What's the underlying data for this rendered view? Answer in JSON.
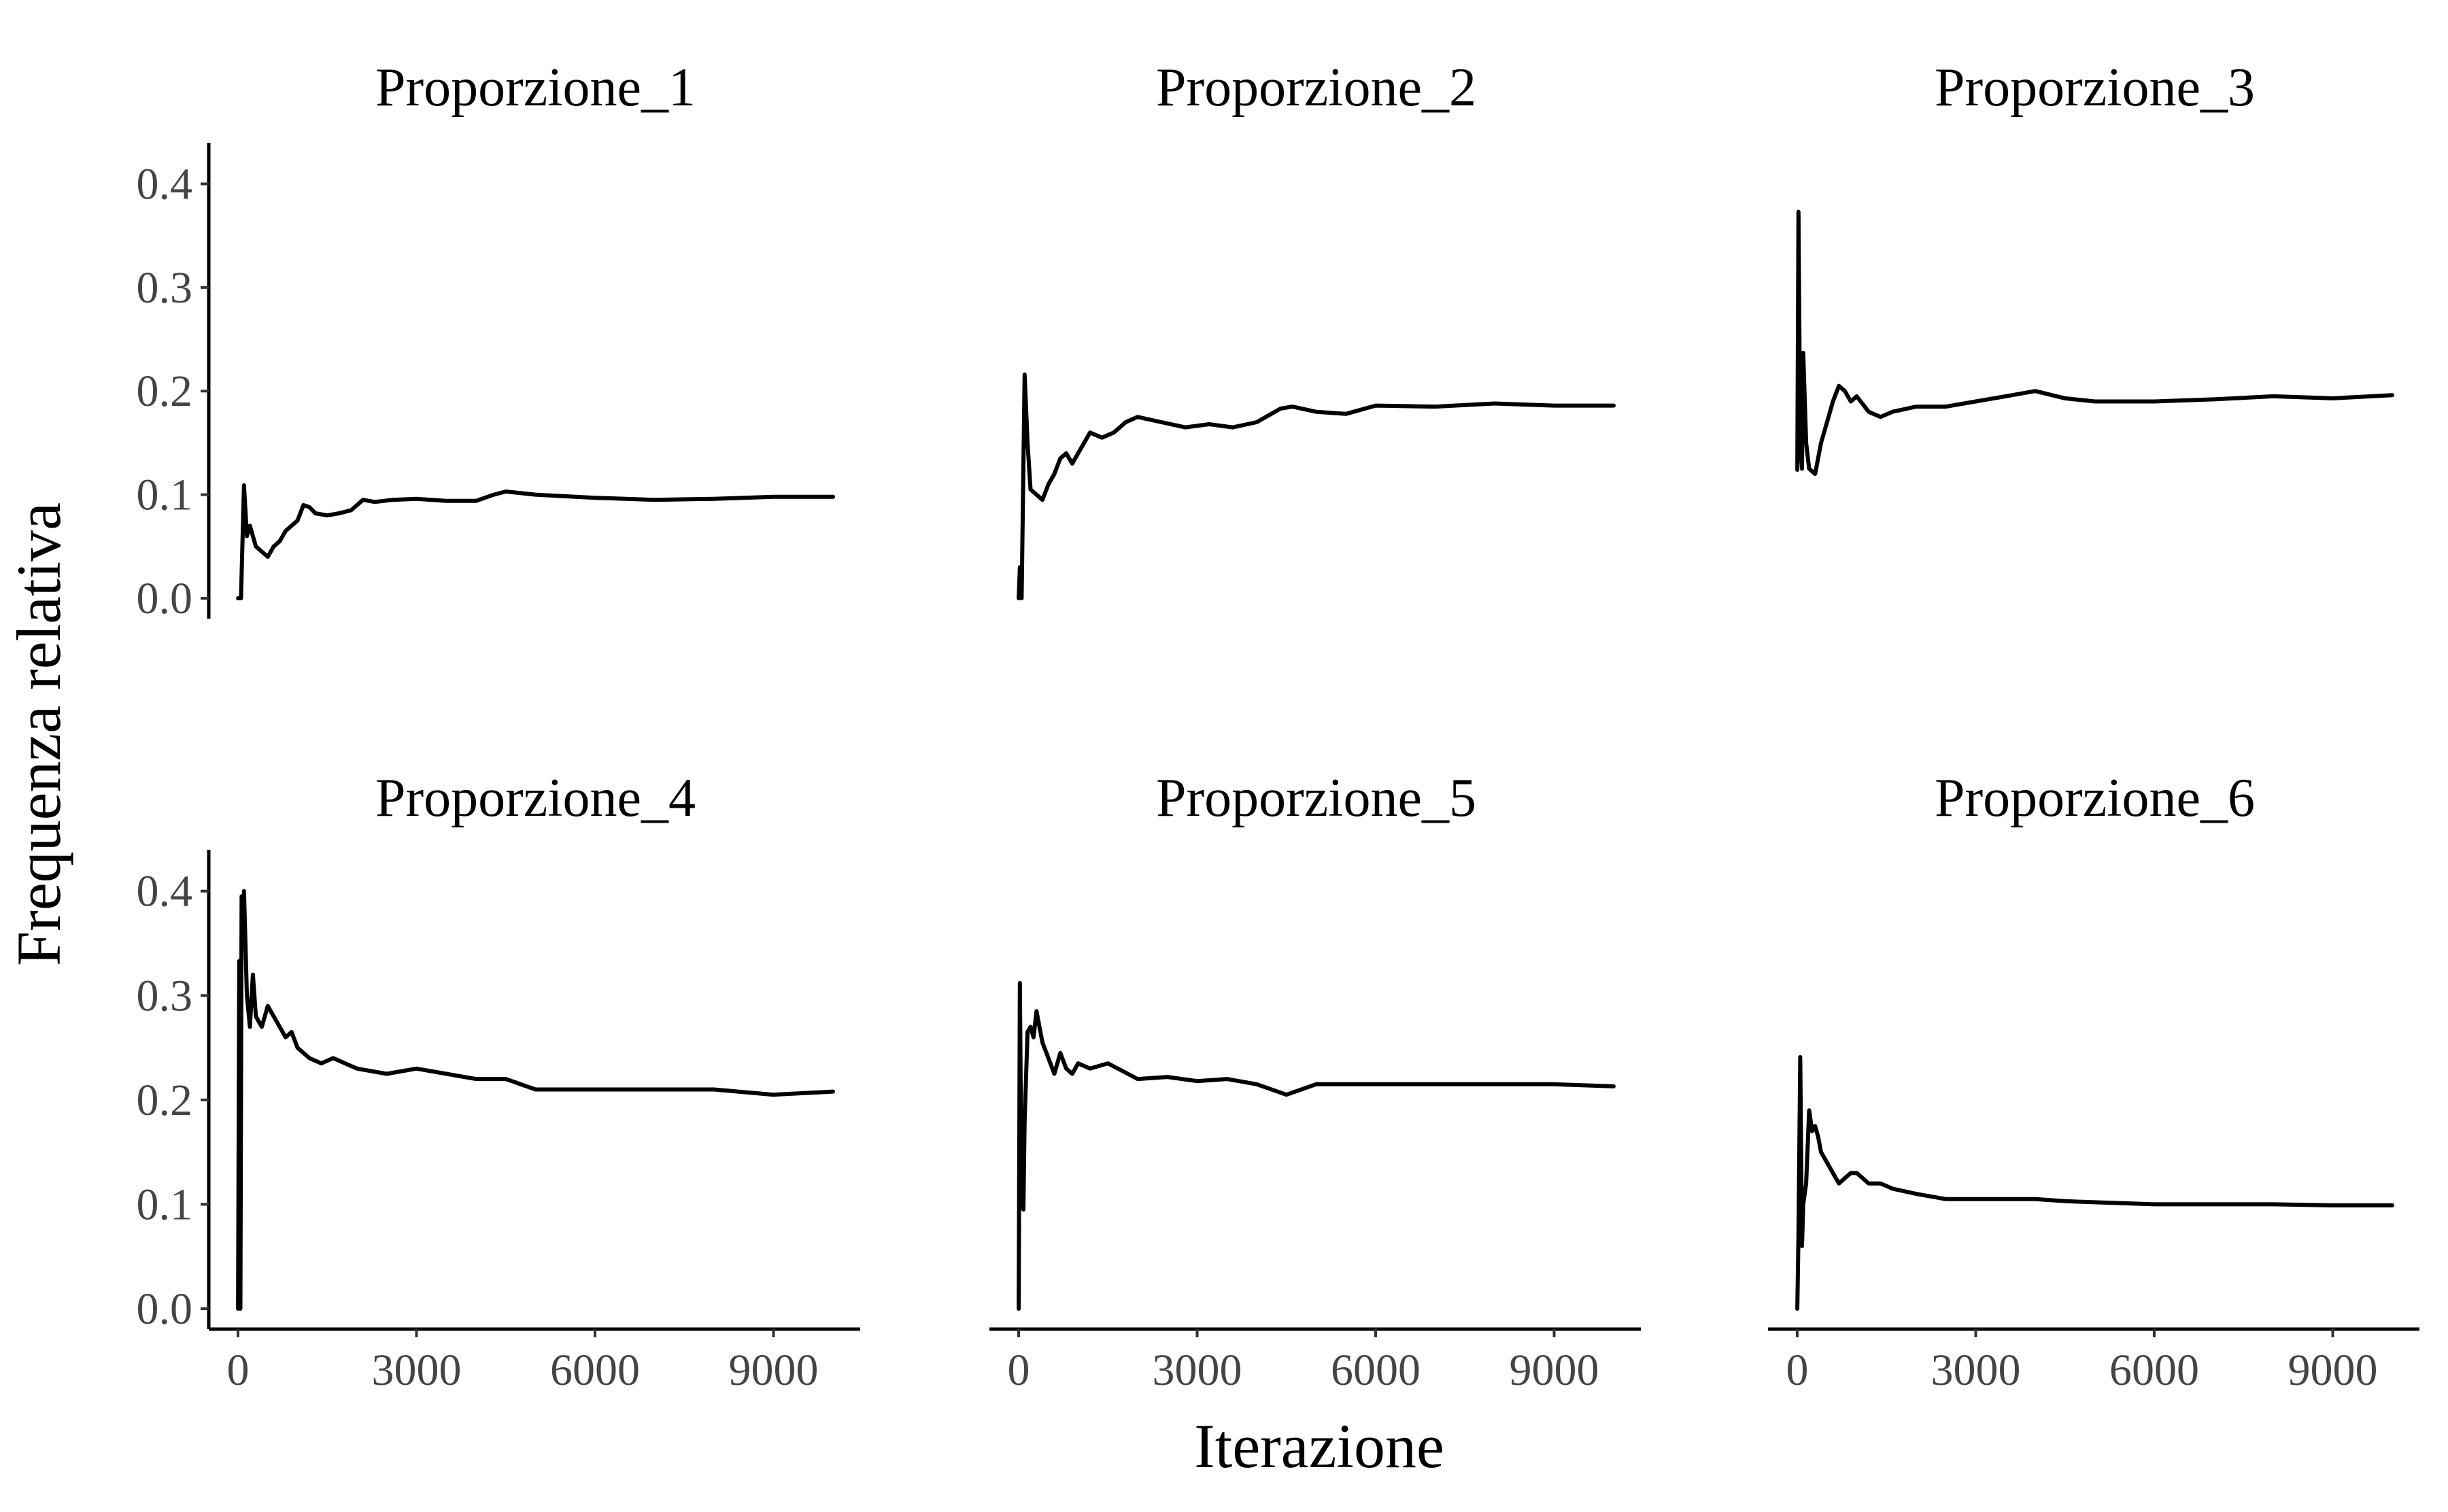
{
  "chart_data": {
    "type": "line",
    "xlabel": "Iterazione",
    "ylabel": "Frequenza relativa",
    "xlim": [
      0,
      10000
    ],
    "ylim": [
      0,
      0.42
    ],
    "xticks": [
      0,
      3000,
      6000,
      9000
    ],
    "xtick_labels": [
      "0",
      "3000",
      "6000",
      "9000"
    ],
    "yticks": [
      0.0,
      0.1,
      0.2,
      0.3,
      0.4
    ],
    "ytick_labels": [
      "0.0",
      "0.1",
      "0.2",
      "0.3",
      "0.4"
    ],
    "grid": false,
    "panels": [
      {
        "title": "Proporzione_1",
        "x": [
          1,
          50,
          100,
          150,
          200,
          300,
          400,
          500,
          600,
          700,
          800,
          900,
          1000,
          1100,
          1200,
          1300,
          1500,
          1700,
          1900,
          2100,
          2300,
          2600,
          3000,
          3500,
          4000,
          4300,
          4500,
          5000,
          6000,
          7000,
          8000,
          9000,
          10000
        ],
        "y": [
          0.0,
          0.0,
          0.109,
          0.06,
          0.07,
          0.05,
          0.045,
          0.04,
          0.05,
          0.055,
          0.065,
          0.07,
          0.075,
          0.09,
          0.088,
          0.082,
          0.08,
          0.082,
          0.085,
          0.095,
          0.093,
          0.095,
          0.096,
          0.094,
          0.094,
          0.1,
          0.103,
          0.1,
          0.097,
          0.095,
          0.096,
          0.098,
          0.098
        ]
      },
      {
        "title": "Proporzione_2",
        "x": [
          1,
          20,
          50,
          100,
          150,
          200,
          300,
          400,
          500,
          600,
          700,
          800,
          900,
          1000,
          1200,
          1400,
          1600,
          1800,
          2000,
          2400,
          2800,
          3200,
          3600,
          4000,
          4400,
          4600,
          5000,
          5500,
          6000,
          7000,
          8000,
          9000,
          10000
        ],
        "y": [
          0.0,
          0.03,
          0.0,
          0.216,
          0.15,
          0.105,
          0.1,
          0.095,
          0.11,
          0.12,
          0.135,
          0.14,
          0.13,
          0.14,
          0.16,
          0.155,
          0.16,
          0.17,
          0.175,
          0.17,
          0.165,
          0.168,
          0.165,
          0.17,
          0.183,
          0.185,
          0.18,
          0.178,
          0.186,
          0.185,
          0.188,
          0.186,
          0.186
        ]
      },
      {
        "title": "Proporzione_3",
        "x": [
          1,
          20,
          50,
          80,
          100,
          150,
          200,
          300,
          400,
          500,
          600,
          700,
          800,
          900,
          1000,
          1200,
          1400,
          1600,
          2000,
          2500,
          3000,
          3500,
          4000,
          4500,
          5000,
          6000,
          7000,
          8000,
          9000,
          10000
        ],
        "y": [
          0.124,
          0.373,
          0.15,
          0.125,
          0.237,
          0.15,
          0.125,
          0.12,
          0.15,
          0.17,
          0.19,
          0.205,
          0.2,
          0.19,
          0.195,
          0.18,
          0.175,
          0.18,
          0.185,
          0.185,
          0.19,
          0.195,
          0.2,
          0.193,
          0.19,
          0.19,
          0.192,
          0.195,
          0.193,
          0.196
        ]
      },
      {
        "title": "Proporzione_4",
        "x": [
          1,
          20,
          40,
          60,
          80,
          100,
          150,
          200,
          250,
          300,
          350,
          400,
          500,
          600,
          700,
          800,
          900,
          1000,
          1200,
          1400,
          1600,
          1800,
          2000,
          2500,
          3000,
          3500,
          4000,
          4500,
          5000,
          6000,
          7000,
          8000,
          9000,
          10000
        ],
        "y": [
          0.0,
          0.333,
          0.0,
          0.395,
          0.35,
          0.4,
          0.3,
          0.27,
          0.32,
          0.28,
          0.275,
          0.27,
          0.29,
          0.28,
          0.27,
          0.26,
          0.265,
          0.25,
          0.24,
          0.235,
          0.24,
          0.235,
          0.23,
          0.225,
          0.23,
          0.225,
          0.22,
          0.22,
          0.21,
          0.21,
          0.21,
          0.21,
          0.205,
          0.208
        ]
      },
      {
        "title": "Proporzione_5",
        "x": [
          1,
          20,
          50,
          80,
          100,
          150,
          200,
          250,
          300,
          350,
          400,
          500,
          600,
          700,
          800,
          900,
          1000,
          1200,
          1500,
          2000,
          2500,
          3000,
          3500,
          4000,
          4500,
          5000,
          6000,
          7000,
          8000,
          9000,
          10000
        ],
        "y": [
          0.0,
          0.312,
          0.1,
          0.095,
          0.18,
          0.265,
          0.27,
          0.26,
          0.285,
          0.27,
          0.255,
          0.24,
          0.225,
          0.245,
          0.23,
          0.225,
          0.235,
          0.23,
          0.235,
          0.22,
          0.222,
          0.218,
          0.22,
          0.215,
          0.205,
          0.215,
          0.215,
          0.215,
          0.215,
          0.215,
          0.213
        ]
      },
      {
        "title": "Proporzione_6",
        "x": [
          1,
          20,
          50,
          80,
          100,
          150,
          200,
          250,
          300,
          350,
          400,
          500,
          600,
          700,
          800,
          900,
          1000,
          1200,
          1400,
          1600,
          2000,
          2500,
          3000,
          3500,
          4000,
          4500,
          5000,
          6000,
          7000,
          8000,
          9000,
          10000
        ],
        "y": [
          0.0,
          0.07,
          0.241,
          0.06,
          0.1,
          0.12,
          0.19,
          0.17,
          0.175,
          0.165,
          0.15,
          0.14,
          0.13,
          0.12,
          0.125,
          0.13,
          0.13,
          0.12,
          0.12,
          0.115,
          0.11,
          0.105,
          0.105,
          0.105,
          0.105,
          0.103,
          0.102,
          0.1,
          0.1,
          0.1,
          0.099,
          0.099
        ]
      }
    ]
  }
}
